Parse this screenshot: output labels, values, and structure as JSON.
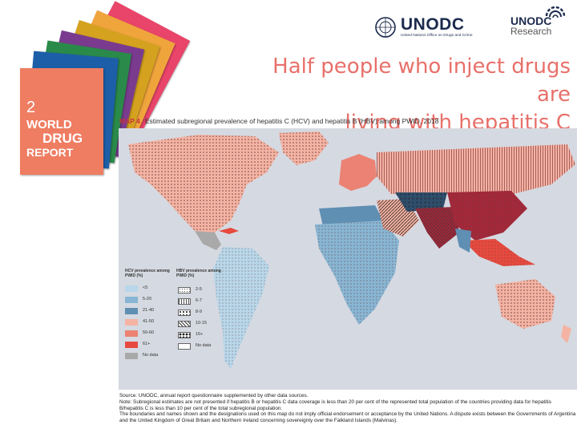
{
  "report": {
    "number": "2",
    "lines": [
      "WORLD",
      "DRUG",
      "REPORT"
    ],
    "cover_colors": [
      "#e9446a",
      "#f0a43c",
      "#d4a21e",
      "#7a3b8f",
      "#2a8a4a",
      "#1c5fa8",
      "#ef7d62"
    ]
  },
  "logos": {
    "unodc_main": "UNODC",
    "unodc_main_sub": "United Nations Office on Drugs and Crime",
    "unodc_research_word": "UNODC",
    "unodc_research_sub": "Research"
  },
  "title": {
    "line1": "Half people who inject drugs are",
    "line2": "living with hepatitis C"
  },
  "map": {
    "label": "MAP 4",
    "caption": "Estimated subregional prevalence of hepatitis C (HCV) and hepatitis B (HBV) among PWID, 2018",
    "colors": {
      "ocean": "#d5d9e1",
      "hcv_lt5": "#b8d7ea",
      "hcv_5_20": "#88b6d4",
      "hcv_21_40": "#5f8fb3",
      "hcv_41_50": "#f4b3a3",
      "hcv_50_60": "#eb8273",
      "hcv_61plus": "#e64a3f",
      "hcv_nodata": "#a9a9a9",
      "darkred": "#a3283a",
      "navy": "#2f4e6c"
    }
  },
  "legend": {
    "hcv_title": "HCV prevalence among PWID (%)",
    "hbv_title": "HBV prevalence among PWID (%)",
    "hcv_items": [
      "<5",
      "5-20",
      "21-40",
      "41-50",
      "50-60",
      "61+",
      "No data"
    ],
    "hbv_items": [
      "2-5",
      "6-7",
      "8-9",
      "10-15",
      "16+",
      "No data"
    ]
  },
  "source": {
    "line1": "Source: UNODC, annual report questionnaire supplemented by other data sources.",
    "line2": "Note: Subregional estimates are not presented if hepatitis B or hepatitis C data coverage is less than 20 per cent of the represented total population of the countries providing data for hepatitis B/hepatitis C is less than 10 per cent of the total subregional population.",
    "line3": "The boundaries and names shown and the designations used on this map do not imply official endorsement or acceptance by the United Nations. A dispute exists between the Governments of Argentina and the United Kingdom of Great Britain and Northern Ireland concerning sovereignty over the Falkland Islands (Malvinas)."
  }
}
